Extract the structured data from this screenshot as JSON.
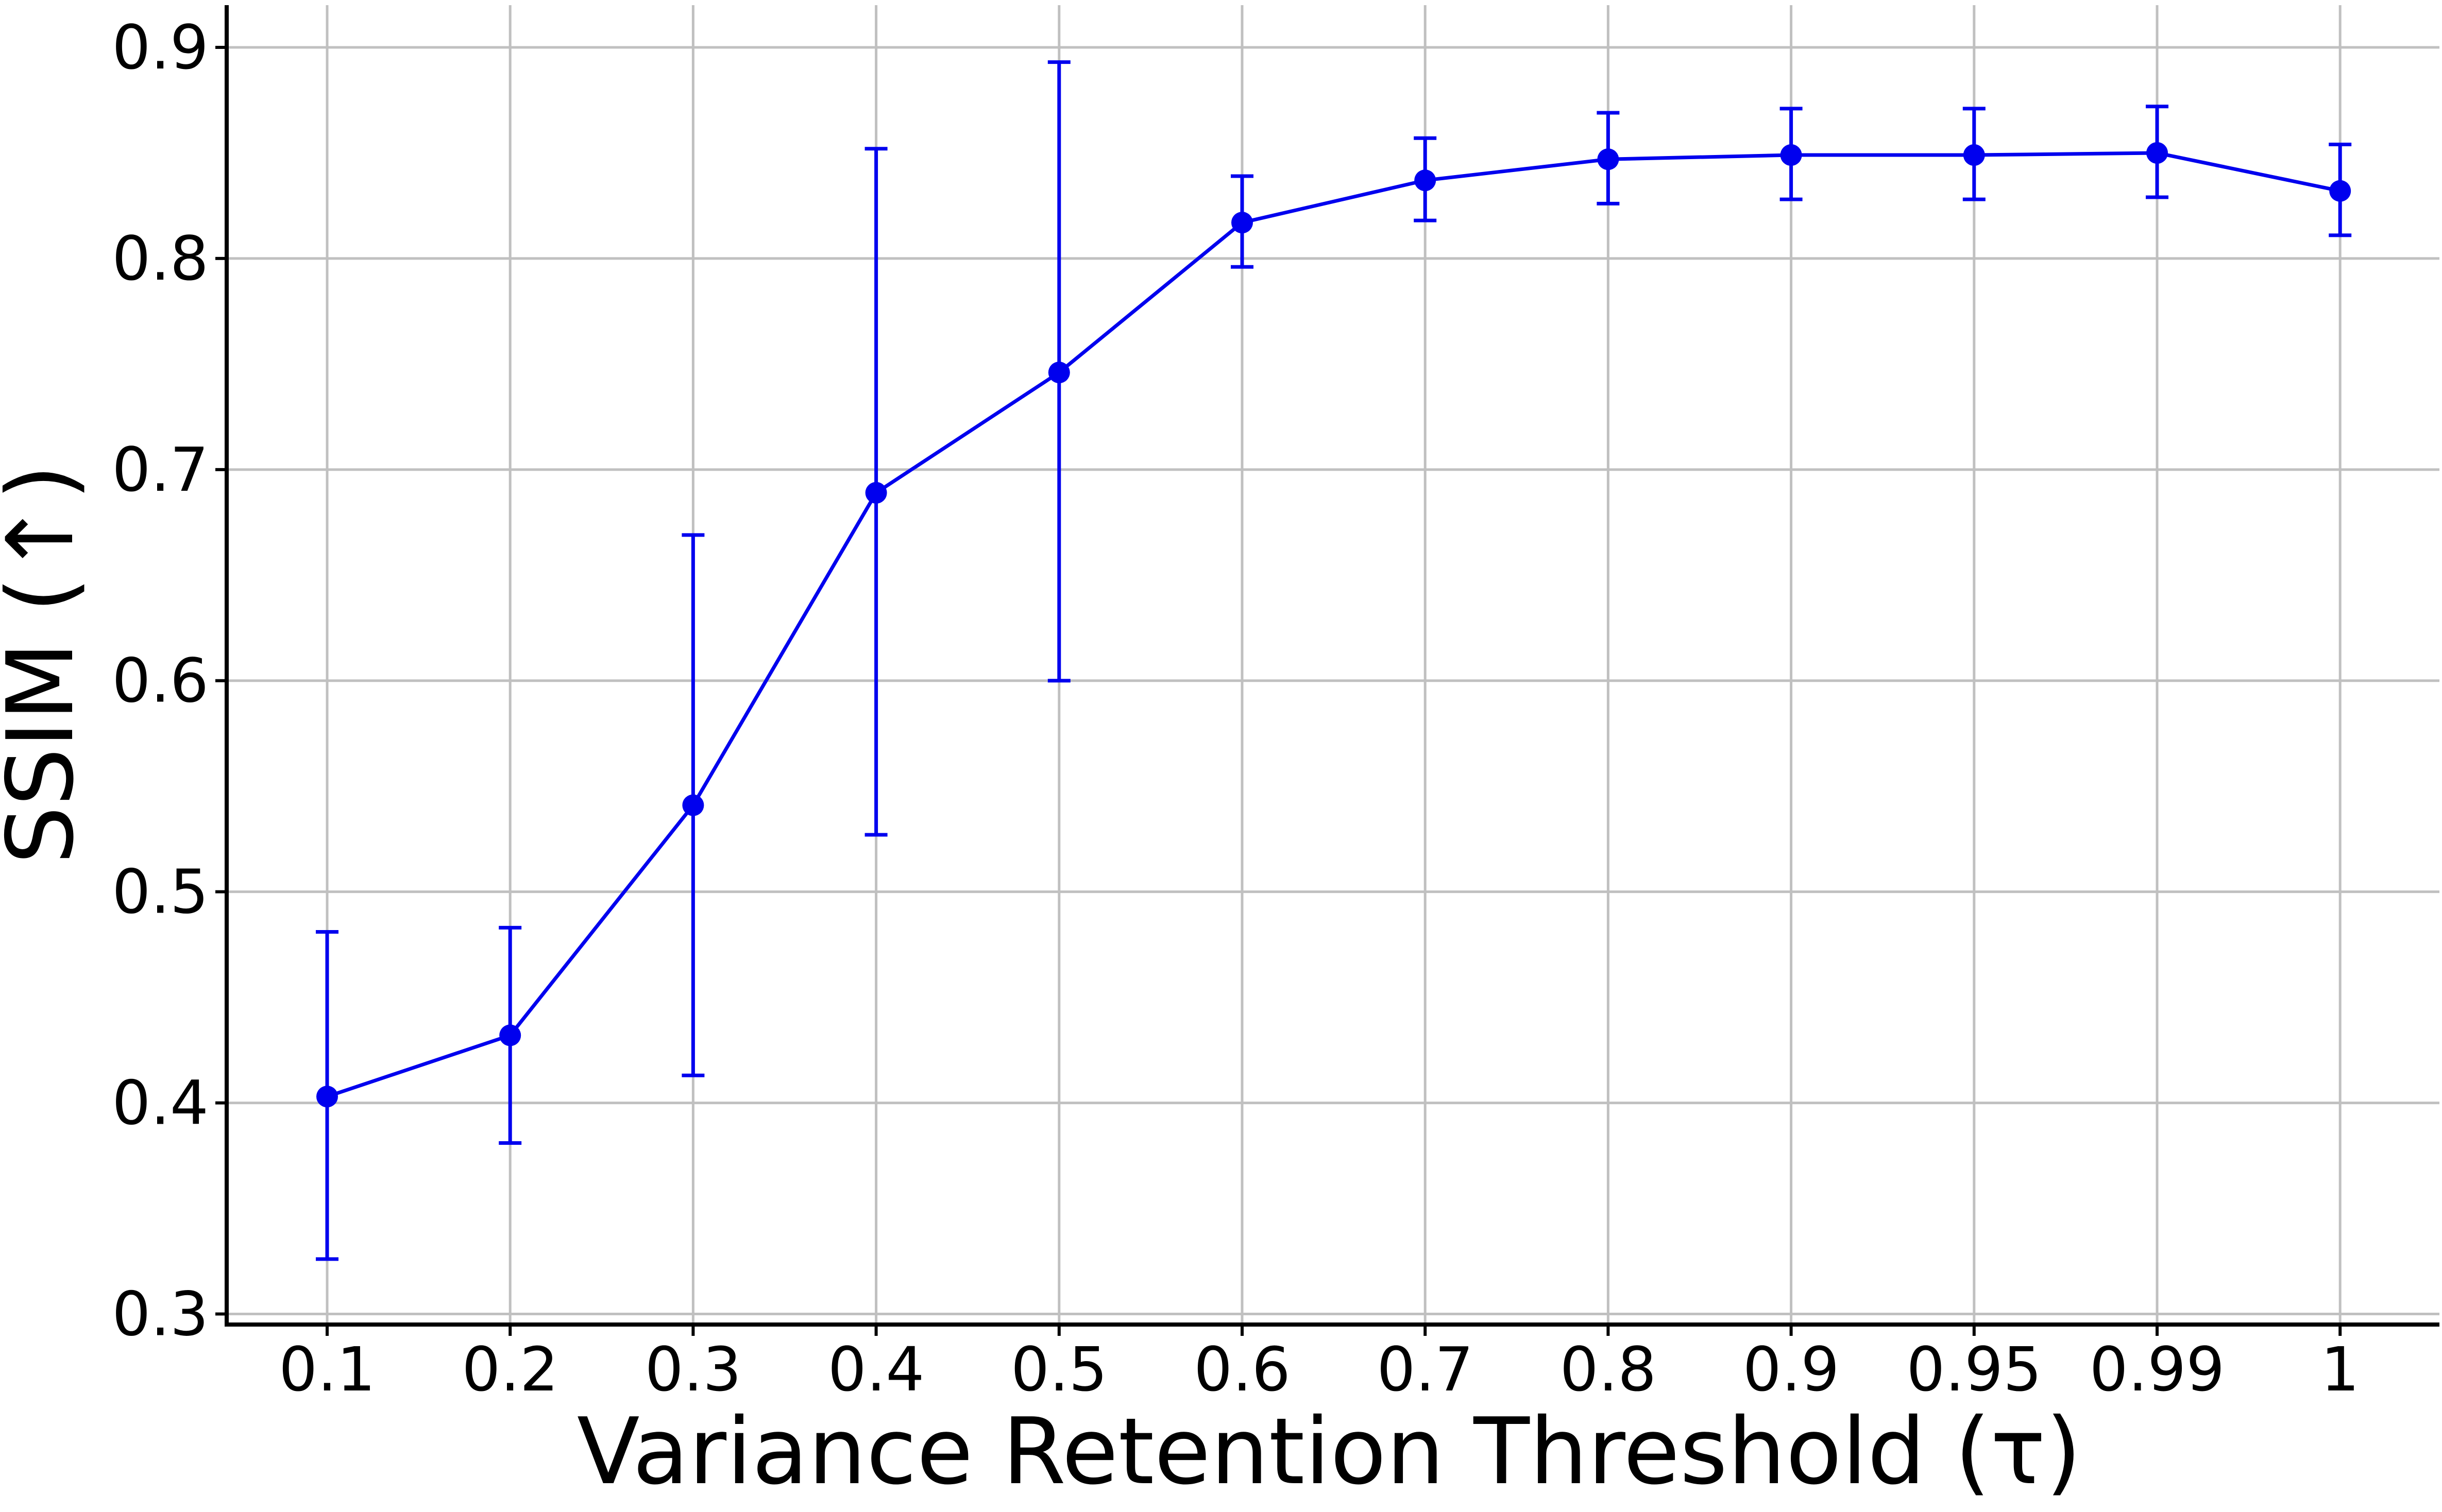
{
  "chart_data": {
    "type": "line",
    "title": "",
    "xlabel": "Variance Retention Threshold (τ)",
    "ylabel": "SSIM (↑)",
    "categories": [
      "0.1",
      "0.2",
      "0.3",
      "0.4",
      "0.5",
      "0.6",
      "0.7",
      "0.8",
      "0.9",
      "0.95",
      "0.99",
      "1"
    ],
    "series": [
      {
        "values": [
          0.403,
          0.432,
          0.541,
          0.689,
          0.746,
          0.817,
          0.837,
          0.847,
          0.849,
          0.849,
          0.85,
          0.832
        ],
        "error_lower": [
          0.326,
          0.381,
          0.413,
          0.527,
          0.6,
          0.796,
          0.818,
          0.826,
          0.828,
          0.828,
          0.829,
          0.811
        ],
        "error_upper": [
          0.481,
          0.483,
          0.669,
          0.852,
          0.893,
          0.839,
          0.857,
          0.869,
          0.871,
          0.871,
          0.872,
          0.854
        ]
      }
    ],
    "y_ticks": [
      "0.3",
      "0.4",
      "0.5",
      "0.6",
      "0.7",
      "0.8",
      "0.9"
    ],
    "ylim": [
      0.295,
      0.92
    ],
    "grid": true,
    "legend": "none",
    "colors": {
      "series": "#0000ee",
      "grid": "#c0c0c0",
      "axis": "#000000"
    }
  }
}
